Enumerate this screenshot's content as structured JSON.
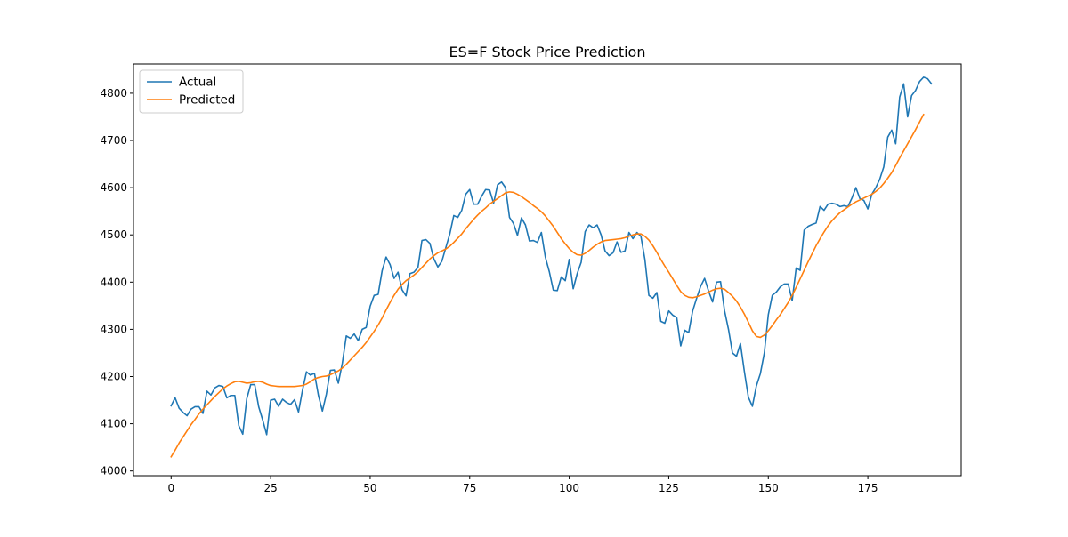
{
  "chart_data": {
    "type": "line",
    "title": "ES=F Stock Price Prediction",
    "xlabel": "",
    "ylabel": "",
    "xlim": [
      -9.45,
      198.45
    ],
    "ylim": [
      3990,
      4862
    ],
    "xticks": [
      0,
      25,
      50,
      75,
      100,
      125,
      150,
      175
    ],
    "yticks": [
      4000,
      4100,
      4200,
      4300,
      4400,
      4500,
      4600,
      4700,
      4800
    ],
    "grid": false,
    "legend_position": "top-left",
    "colors": {
      "actual": "#1f77b4",
      "predicted": "#ff7f0e"
    },
    "series": [
      {
        "name": "Actual",
        "key": "actual",
        "values": [
          4138,
          4155,
          4133,
          4124,
          4117,
          4131,
          4136,
          4136,
          4122,
          4169,
          4161,
          4176,
          4181,
          4179,
          4155,
          4160,
          4160,
          4096,
          4078,
          4153,
          4183,
          4183,
          4136,
          4108,
          4077,
          4150,
          4152,
          4137,
          4152,
          4145,
          4141,
          4151,
          4125,
          4171,
          4210,
          4203,
          4207,
          4160,
          4127,
          4163,
          4213,
          4214,
          4186,
          4228,
          4286,
          4281,
          4290,
          4276,
          4300,
          4304,
          4349,
          4372,
          4374,
          4424,
          4453,
          4437,
          4408,
          4421,
          4384,
          4371,
          4418,
          4421,
          4431,
          4488,
          4490,
          4482,
          4449,
          4432,
          4444,
          4473,
          4502,
          4541,
          4537,
          4552,
          4586,
          4596,
          4565,
          4565,
          4582,
          4596,
          4595,
          4567,
          4606,
          4612,
          4600,
          4537,
          4524,
          4499,
          4536,
          4521,
          4487,
          4488,
          4484,
          4505,
          4453,
          4422,
          4383,
          4382,
          4411,
          4403,
          4448,
          4386,
          4418,
          4442,
          4507,
          4521,
          4515,
          4521,
          4500,
          4466,
          4456,
          4462,
          4485,
          4463,
          4466,
          4505,
          4492,
          4505,
          4497,
          4448,
          4372,
          4366,
          4378,
          4317,
          4313,
          4339,
          4330,
          4325,
          4265,
          4298,
          4293,
          4339,
          4366,
          4391,
          4408,
          4381,
          4358,
          4400,
          4401,
          4340,
          4300,
          4250,
          4243,
          4270,
          4210,
          4156,
          4137,
          4180,
          4206,
          4250,
          4331,
          4372,
          4379,
          4390,
          4396,
          4396,
          4361,
          4430,
          4425,
          4510,
          4518,
          4522,
          4525,
          4560,
          4552,
          4565,
          4567,
          4565,
          4560,
          4562,
          4560,
          4578,
          4600,
          4577,
          4573,
          4555,
          4586,
          4600,
          4618,
          4644,
          4707,
          4722,
          4693,
          4792,
          4820,
          4750,
          4795,
          4806,
          4825,
          4834,
          4831,
          4820
        ]
      },
      {
        "name": "Predicted",
        "key": "predicted",
        "values": [
          4030,
          4044,
          4059,
          4072,
          4085,
          4098,
          4109,
          4121,
          4131,
          4140,
          4149,
          4158,
          4166,
          4174,
          4180,
          4185,
          4189,
          4190,
          4188,
          4186,
          4187,
          4189,
          4190,
          4188,
          4184,
          4181,
          4180,
          4179,
          4179,
          4179,
          4179,
          4179,
          4180,
          4181,
          4184,
          4189,
          4195,
          4198,
          4200,
          4201,
          4204,
          4208,
          4212,
          4218,
          4226,
          4235,
          4244,
          4253,
          4262,
          4272,
          4284,
          4296,
          4309,
          4324,
          4341,
          4357,
          4372,
          4385,
          4395,
          4403,
          4409,
          4415,
          4422,
          4431,
          4440,
          4449,
          4456,
          4462,
          4466,
          4470,
          4476,
          4484,
          4493,
          4502,
          4513,
          4523,
          4533,
          4542,
          4550,
          4557,
          4565,
          4571,
          4577,
          4583,
          4589,
          4591,
          4590,
          4586,
          4581,
          4575,
          4569,
          4562,
          4556,
          4549,
          4540,
          4529,
          4518,
          4505,
          4492,
          4481,
          4471,
          4463,
          4458,
          4457,
          4461,
          4467,
          4474,
          4480,
          4485,
          4488,
          4489,
          4490,
          4491,
          4492,
          4494,
          4497,
          4500,
          4502,
          4502,
          4497,
          4489,
          4477,
          4463,
          4448,
          4434,
          4421,
          4407,
          4393,
          4380,
          4372,
          4368,
          4367,
          4369,
          4372,
          4375,
          4379,
          4383,
          4386,
          4387,
          4385,
          4378,
          4370,
          4360,
          4347,
          4332,
          4315,
          4297,
          4285,
          4283,
          4288,
          4297,
          4308,
          4320,
          4331,
          4344,
          4357,
          4372,
          4389,
          4407,
          4425,
          4443,
          4460,
          4477,
          4492,
          4506,
          4519,
          4530,
          4539,
          4547,
          4553,
          4559,
          4565,
          4570,
          4574,
          4578,
          4582,
          4586,
          4592,
          4599,
          4609,
          4620,
          4632,
          4647,
          4663,
          4678,
          4693,
          4708,
          4723,
          4739,
          4755
        ]
      }
    ]
  }
}
